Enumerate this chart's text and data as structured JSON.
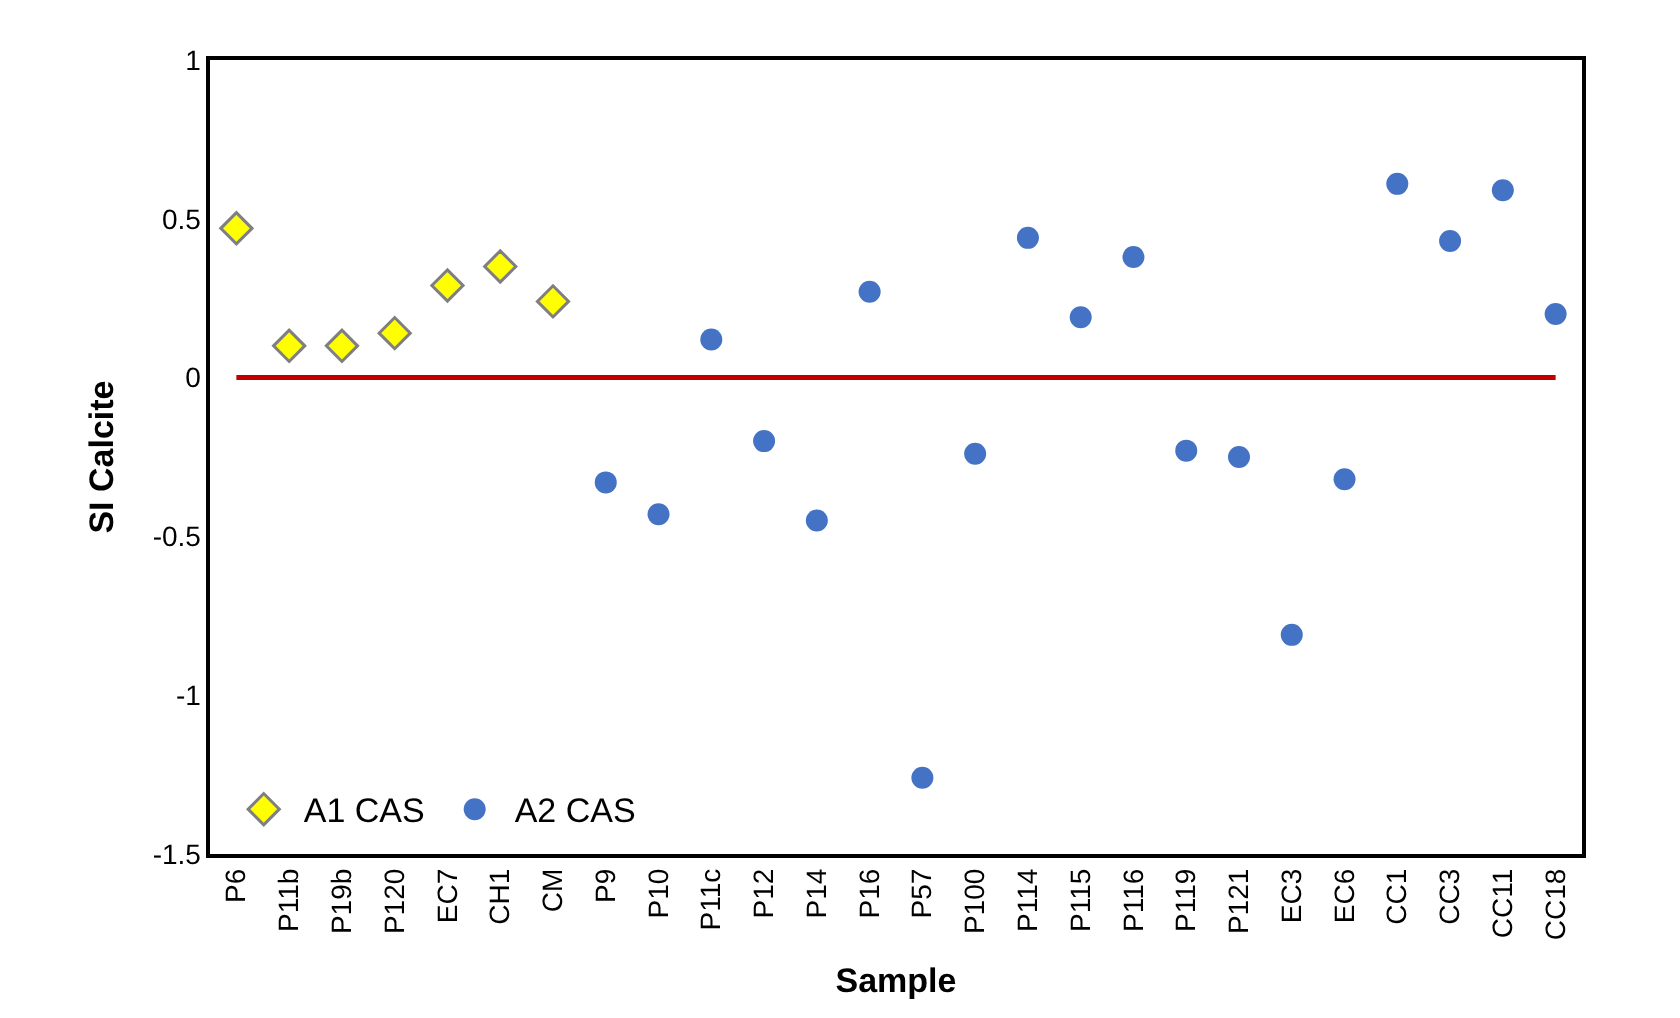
{
  "chart_data": {
    "type": "scatter",
    "xlabel": "Sample",
    "ylabel": "SI Calcite",
    "categories": [
      "P6",
      "P11b",
      "P19b",
      "P120",
      "EC7",
      "CH1",
      "CM",
      "P9",
      "P10",
      "P11c",
      "P12",
      "P14",
      "P16",
      "P57",
      "P100",
      "P114",
      "P115",
      "P116",
      "P119",
      "P121",
      "EC3",
      "EC6",
      "CC1",
      "CC3",
      "CC11",
      "CC18"
    ],
    "series": [
      {
        "name": "A1 CAS",
        "color": "#ffff00",
        "marker": "diamond",
        "values": [
          0.47,
          0.1,
          0.1,
          0.14,
          0.29,
          0.35,
          0.24,
          null,
          null,
          null,
          null,
          null,
          null,
          null,
          null,
          null,
          null,
          null,
          null,
          null,
          null,
          null,
          null,
          null,
          null,
          null
        ]
      },
      {
        "name": "A2 CAS",
        "color": "#4472c4",
        "marker": "circle",
        "values": [
          null,
          null,
          null,
          null,
          null,
          null,
          null,
          -0.33,
          -0.43,
          0.12,
          -0.2,
          -0.45,
          0.27,
          -1.26,
          -0.24,
          0.44,
          0.19,
          0.38,
          -0.23,
          -0.25,
          -0.81,
          -0.32,
          0.61,
          0.43,
          0.59,
          0.2
        ]
      }
    ],
    "ref_lines": [
      {
        "axis": "y",
        "value": 0,
        "color": "#c00000"
      }
    ],
    "ylim": [
      -1.5,
      1
    ],
    "yticks": [
      -1.5,
      -1,
      -0.5,
      0,
      0.5,
      1
    ],
    "legend": "bottom left"
  }
}
